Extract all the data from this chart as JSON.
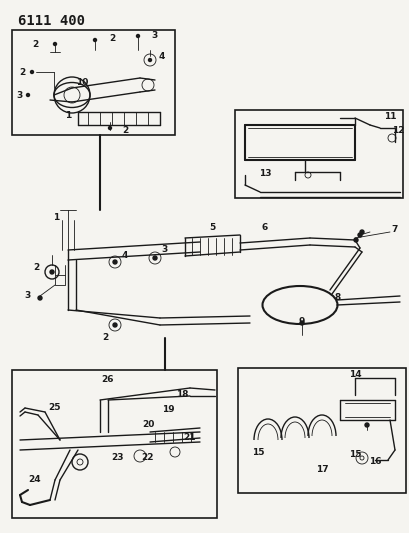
{
  "title": "6111 400",
  "bg_color": "#f5f4f0",
  "fg_color": "#1a1a1a",
  "title_fontsize": 10,
  "label_fontsize": 6.5,
  "figsize": [
    4.1,
    5.33
  ],
  "dpi": 100,
  "page_bg": "#f5f4f0"
}
